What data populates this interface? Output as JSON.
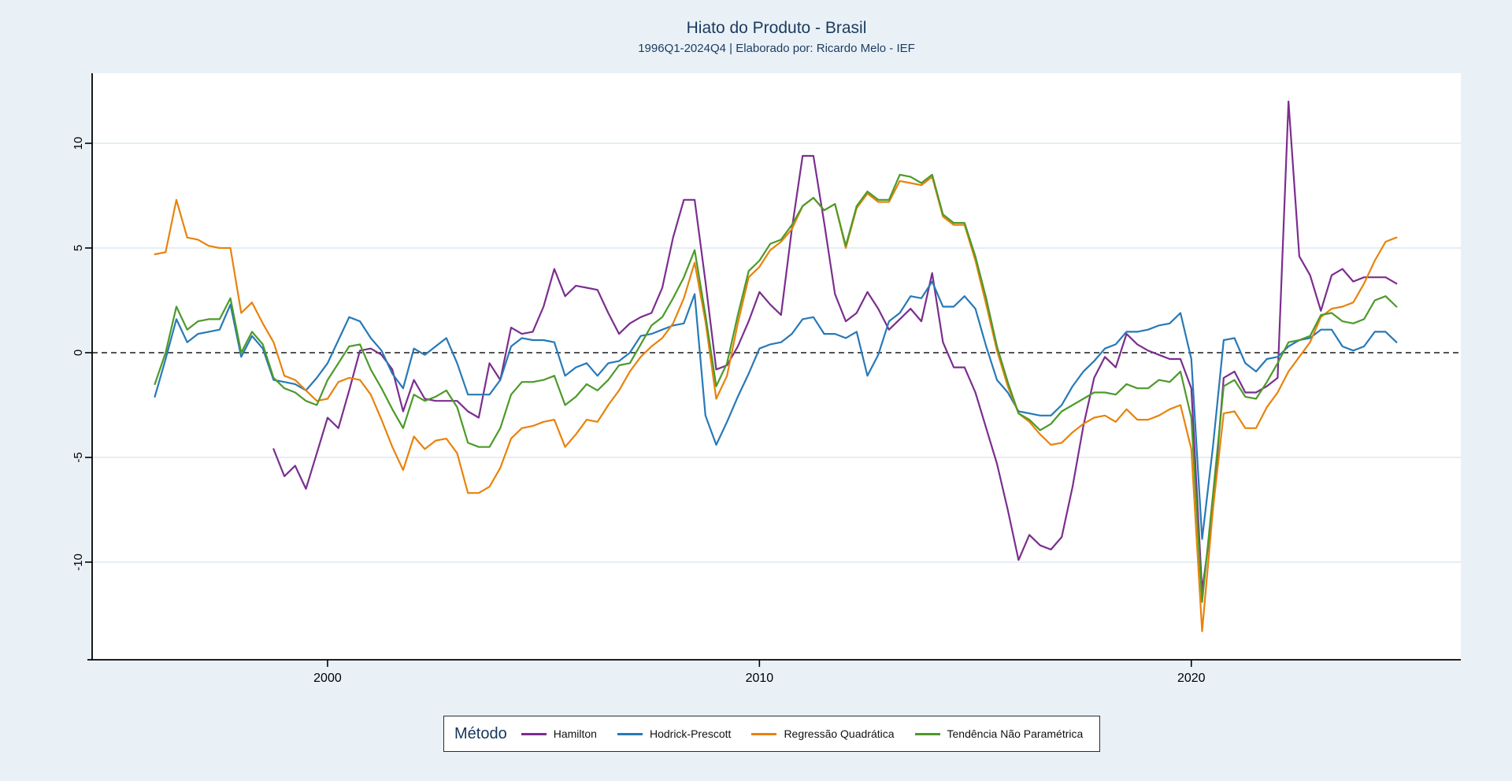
{
  "header": {
    "title": "Hiato do Produto - Brasil",
    "subtitle": "1996Q1-2024Q4 | Elaborado por: Ricardo Melo - IEF"
  },
  "legend": {
    "title": "Método",
    "position": "bottom-center"
  },
  "colors": {
    "background": "#E9F1F7",
    "plot_background": "#FFFFFF",
    "gridline": "#DCE9F0",
    "axis": "#000000",
    "zero_line": "#1A1A1A",
    "title_text": "#1B3A5F"
  },
  "chart_data": {
    "type": "line",
    "title": "Hiato do Produto - Brasil",
    "subtitle": "1996Q1-2024Q4 | Elaborado por: Ricardo Melo - IEF",
    "xlabel": "",
    "ylabel": "",
    "x_tick_labels": [
      2000,
      2010,
      2020
    ],
    "y_tick_labels": [
      10,
      5,
      0,
      -5,
      -10
    ],
    "ylim": [
      -14.7,
      13.3
    ],
    "x_range_quarters": [
      "1996Q1",
      "2024Q4"
    ],
    "grid": "horizontal-faint",
    "zero_line": "dashed-black",
    "legend_position": "bottom",
    "categories": [
      "1996Q1",
      "1996Q2",
      "1996Q3",
      "1996Q4",
      "1997Q1",
      "1997Q2",
      "1997Q3",
      "1997Q4",
      "1998Q1",
      "1998Q2",
      "1998Q3",
      "1998Q4",
      "1999Q1",
      "1999Q2",
      "1999Q3",
      "1999Q4",
      "2000Q1",
      "2000Q2",
      "2000Q3",
      "2000Q4",
      "2001Q1",
      "2001Q2",
      "2001Q3",
      "2001Q4",
      "2002Q1",
      "2002Q2",
      "2002Q3",
      "2002Q4",
      "2003Q1",
      "2003Q2",
      "2003Q3",
      "2003Q4",
      "2004Q1",
      "2004Q2",
      "2004Q3",
      "2004Q4",
      "2005Q1",
      "2005Q2",
      "2005Q3",
      "2005Q4",
      "2006Q1",
      "2006Q2",
      "2006Q3",
      "2006Q4",
      "2007Q1",
      "2007Q2",
      "2007Q3",
      "2007Q4",
      "2008Q1",
      "2008Q2",
      "2008Q3",
      "2008Q4",
      "2009Q1",
      "2009Q2",
      "2009Q3",
      "2009Q4",
      "2010Q1",
      "2010Q2",
      "2010Q3",
      "2010Q4",
      "2011Q1",
      "2011Q2",
      "2011Q3",
      "2011Q4",
      "2012Q1",
      "2012Q2",
      "2012Q3",
      "2012Q4",
      "2013Q1",
      "2013Q2",
      "2013Q3",
      "2013Q4",
      "2014Q1",
      "2014Q2",
      "2014Q3",
      "2014Q4",
      "2015Q1",
      "2015Q2",
      "2015Q3",
      "2015Q4",
      "2016Q1",
      "2016Q2",
      "2016Q3",
      "2016Q4",
      "2017Q1",
      "2017Q2",
      "2017Q3",
      "2017Q4",
      "2018Q1",
      "2018Q2",
      "2018Q3",
      "2018Q4",
      "2019Q1",
      "2019Q2",
      "2019Q3",
      "2019Q4",
      "2020Q1",
      "2020Q2",
      "2020Q3",
      "2020Q4",
      "2021Q1",
      "2021Q2",
      "2021Q3",
      "2021Q4",
      "2022Q1",
      "2022Q2",
      "2022Q3",
      "2022Q4",
      "2023Q1",
      "2023Q2",
      "2023Q3",
      "2023Q4",
      "2024Q1",
      "2024Q2",
      "2024Q3",
      "2024Q4"
    ],
    "series": [
      {
        "name": "Hamilton",
        "color": "#7B2E8E",
        "values": [
          null,
          null,
          null,
          null,
          null,
          null,
          null,
          null,
          null,
          null,
          null,
          -4.6,
          -5.9,
          -5.4,
          -6.5,
          -4.8,
          -3.1,
          -3.6,
          -1.8,
          0.1,
          0.2,
          -0.1,
          -0.8,
          -2.8,
          -1.3,
          -2.2,
          -2.3,
          -2.3,
          -2.3,
          -2.8,
          -3.1,
          -0.5,
          -1.3,
          1.2,
          0.9,
          1.0,
          2.2,
          4.0,
          2.7,
          3.2,
          3.1,
          3.0,
          1.9,
          0.9,
          1.4,
          1.7,
          1.9,
          3.1,
          5.5,
          7.3,
          7.3,
          3.4,
          -0.8,
          -0.6,
          0.3,
          1.5,
          2.9,
          2.3,
          1.8,
          5.9,
          9.4,
          9.4,
          6.2,
          2.8,
          1.5,
          1.9,
          2.9,
          2.1,
          1.1,
          1.6,
          2.1,
          1.5,
          3.8,
          0.5,
          -0.7,
          -0.7,
          -1.9,
          -3.6,
          -5.3,
          -7.5,
          -9.9,
          -8.7,
          -9.2,
          -9.4,
          -8.8,
          -6.4,
          -3.5,
          -1.2,
          -0.2,
          -0.7,
          0.9,
          0.4,
          0.1,
          -0.1,
          -0.3,
          -0.3,
          -1.7,
          -11.4,
          -7.5,
          -1.2,
          -0.9,
          -1.9,
          -1.9,
          -1.6,
          -1.2,
          12.0,
          4.6,
          3.7,
          2.0,
          3.7,
          4.0,
          3.4,
          3.6,
          3.6,
          3.6,
          3.3
        ]
      },
      {
        "name": "Hodrick-Prescott",
        "color": "#2779B7",
        "values": [
          -2.1,
          -0.3,
          1.6,
          0.5,
          0.9,
          1.0,
          1.1,
          2.3,
          -0.2,
          0.8,
          0.2,
          -1.3,
          -1.4,
          -1.5,
          -1.8,
          -1.2,
          -0.5,
          0.6,
          1.7,
          1.5,
          0.7,
          0.1,
          -1.0,
          -1.7,
          0.2,
          -0.1,
          0.3,
          0.7,
          -0.5,
          -2.0,
          -2.0,
          -2.0,
          -1.3,
          0.3,
          0.7,
          0.6,
          0.6,
          0.5,
          -1.1,
          -0.7,
          -0.5,
          -1.1,
          -0.5,
          -0.4,
          0.0,
          0.8,
          0.9,
          1.1,
          1.3,
          1.4,
          2.8,
          -3.0,
          -4.4,
          -3.3,
          -2.1,
          -1.0,
          0.2,
          0.4,
          0.5,
          0.9,
          1.6,
          1.7,
          0.9,
          0.9,
          0.7,
          1.0,
          -1.1,
          -0.1,
          1.5,
          1.9,
          2.7,
          2.6,
          3.4,
          2.2,
          2.2,
          2.7,
          2.1,
          0.3,
          -1.3,
          -1.9,
          -2.8,
          -2.9,
          -3.0,
          -3.0,
          -2.5,
          -1.6,
          -0.9,
          -0.4,
          0.2,
          0.4,
          1.0,
          1.0,
          1.1,
          1.3,
          1.4,
          1.9,
          -0.3,
          -8.9,
          -4.5,
          0.6,
          0.7,
          -0.5,
          -0.9,
          -0.3,
          -0.2,
          0.3,
          0.6,
          0.7,
          1.1,
          1.1,
          0.3,
          0.1,
          0.3,
          1.0,
          1.0,
          0.5
        ]
      },
      {
        "name": "Regressão Quadrática",
        "color": "#E8830C",
        "values": [
          4.7,
          4.8,
          7.3,
          5.5,
          5.4,
          5.1,
          5.0,
          5.0,
          1.9,
          2.4,
          1.4,
          0.5,
          -1.1,
          -1.3,
          -1.8,
          -2.3,
          -2.2,
          -1.4,
          -1.2,
          -1.3,
          -2.0,
          -3.2,
          -4.5,
          -5.6,
          -4.0,
          -4.6,
          -4.2,
          -4.1,
          -4.8,
          -6.7,
          -6.7,
          -6.4,
          -5.5,
          -4.1,
          -3.6,
          -3.5,
          -3.3,
          -3.2,
          -4.5,
          -3.9,
          -3.2,
          -3.3,
          -2.5,
          -1.8,
          -0.9,
          -0.2,
          0.3,
          0.7,
          1.4,
          2.6,
          4.3,
          1.5,
          -2.2,
          -1.1,
          1.4,
          3.6,
          4.1,
          4.9,
          5.3,
          5.9,
          7.0,
          7.4,
          6.8,
          7.1,
          5.0,
          6.9,
          7.6,
          7.2,
          7.2,
          8.2,
          8.1,
          8.0,
          8.4,
          6.5,
          6.1,
          6.1,
          4.4,
          2.3,
          0.1,
          -1.6,
          -2.9,
          -3.3,
          -3.9,
          -4.4,
          -4.3,
          -3.8,
          -3.4,
          -3.1,
          -3.0,
          -3.3,
          -2.7,
          -3.2,
          -3.2,
          -3.0,
          -2.7,
          -2.5,
          -4.6,
          -13.3,
          -7.5,
          -2.9,
          -2.8,
          -3.6,
          -3.6,
          -2.6,
          -1.9,
          -0.9,
          -0.2,
          0.5,
          1.7,
          2.1,
          2.2,
          2.4,
          3.3,
          4.4,
          5.3,
          5.5
        ]
      },
      {
        "name": "Tendência Não Paramétrica",
        "color": "#4C9A2A",
        "values": [
          -1.5,
          0.0,
          2.2,
          1.1,
          1.5,
          1.6,
          1.6,
          2.6,
          0.0,
          1.0,
          0.4,
          -1.2,
          -1.7,
          -1.9,
          -2.3,
          -2.5,
          -1.3,
          -0.5,
          0.3,
          0.4,
          -0.8,
          -1.7,
          -2.7,
          -3.6,
          -2.0,
          -2.3,
          -2.1,
          -1.8,
          -2.6,
          -4.3,
          -4.5,
          -4.5,
          -3.6,
          -2.0,
          -1.4,
          -1.4,
          -1.3,
          -1.1,
          -2.5,
          -2.1,
          -1.5,
          -1.8,
          -1.3,
          -0.6,
          -0.5,
          0.4,
          1.3,
          1.7,
          2.6,
          3.6,
          4.9,
          1.8,
          -1.6,
          -0.5,
          1.8,
          3.9,
          4.4,
          5.2,
          5.4,
          6.1,
          7.0,
          7.4,
          6.8,
          7.1,
          5.1,
          7.0,
          7.7,
          7.3,
          7.3,
          8.5,
          8.4,
          8.1,
          8.5,
          6.6,
          6.2,
          6.2,
          4.6,
          2.6,
          0.3,
          -1.4,
          -2.9,
          -3.2,
          -3.7,
          -3.4,
          -2.8,
          -2.5,
          -2.2,
          -1.9,
          -1.9,
          -2.0,
          -1.5,
          -1.7,
          -1.7,
          -1.3,
          -1.4,
          -0.9,
          -3.1,
          -11.9,
          -6.8,
          -1.6,
          -1.3,
          -2.1,
          -2.2,
          -1.4,
          -0.5,
          0.5,
          0.6,
          0.8,
          1.8,
          1.9,
          1.5,
          1.4,
          1.6,
          2.5,
          2.7,
          2.2
        ]
      }
    ]
  }
}
